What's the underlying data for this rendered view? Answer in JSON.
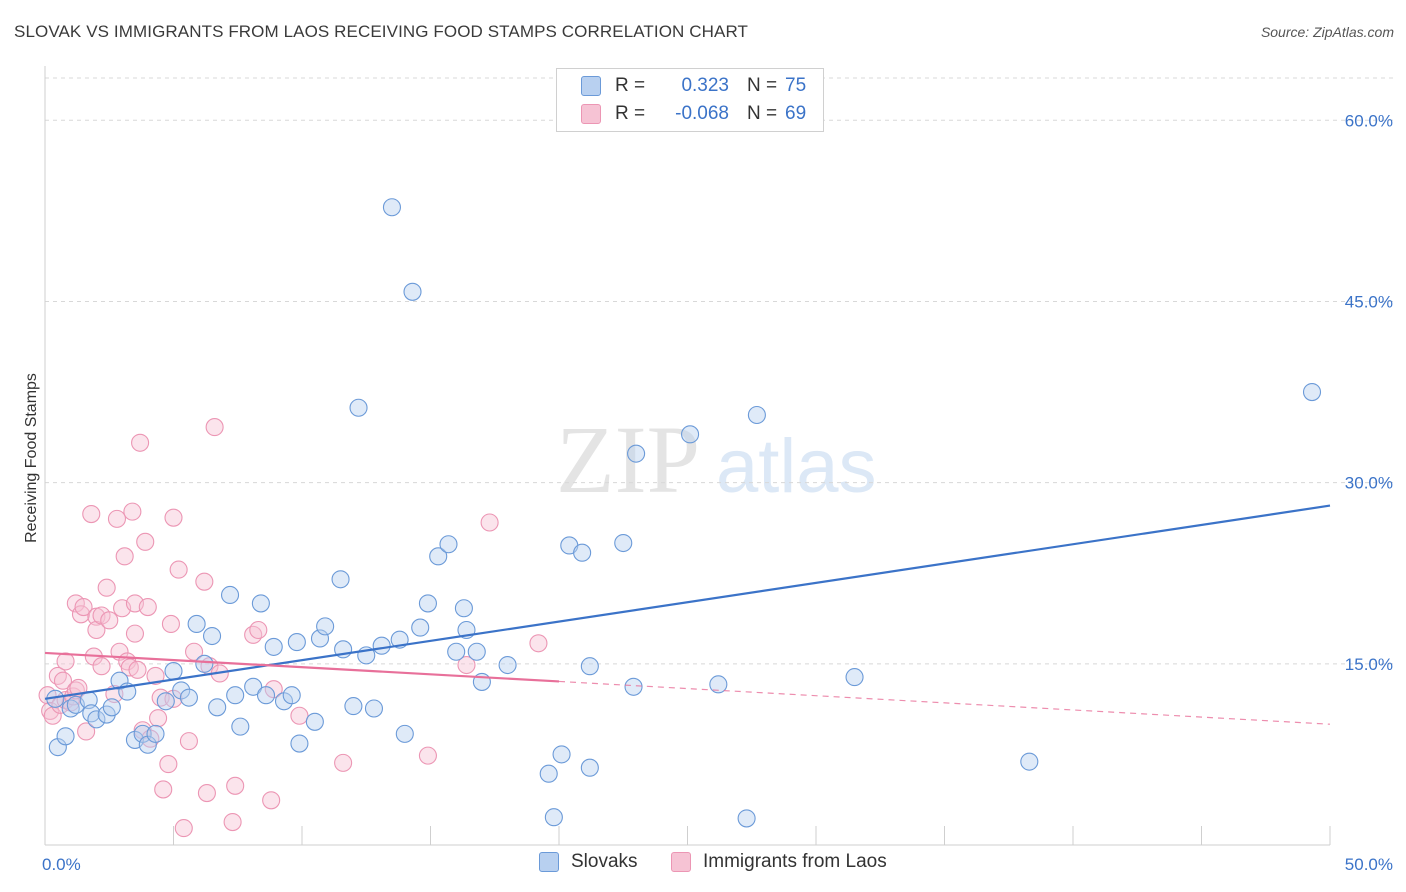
{
  "title": "SLOVAK VS IMMIGRANTS FROM LAOS RECEIVING FOOD STAMPS CORRELATION CHART",
  "source": "Source: ZipAtlas.com",
  "watermark": {
    "zip": "ZIP",
    "atlas": "atlas"
  },
  "colors": {
    "blue": "#3b73c8",
    "blue_fill": "#b8d0f0",
    "blue_stroke": "#6b9ad8",
    "pink": "#e8709a",
    "pink_fill": "#f6c3d4",
    "pink_stroke": "#ec96b4",
    "grid": "#d8d8d8"
  },
  "legend": {
    "rows": [
      {
        "r_label": "R =",
        "r_value": "0.323",
        "n_label": "N =",
        "n_value": "75"
      },
      {
        "r_label": "R =",
        "r_value": "-0.068",
        "n_label": "N =",
        "n_value": "69"
      }
    ]
  },
  "bottom_legend": {
    "series1": "Slovaks",
    "series2": "Immigrants from Laos"
  },
  "chart_data": {
    "type": "scatter",
    "title": "SLOVAK VS IMMIGRANTS FROM LAOS RECEIVING FOOD STAMPS CORRELATION CHART",
    "xlabel": "",
    "ylabel": "Receiving Food Stamps",
    "xlim": [
      0,
      50
    ],
    "ylim": [
      0,
      63.5
    ],
    "x_tick_labels": [
      "0.0%",
      "50.0%"
    ],
    "y_ticks": [
      {
        "value": 15,
        "label": "15.0%"
      },
      {
        "value": 30,
        "label": "30.0%"
      },
      {
        "value": 45,
        "label": "45.0%"
      },
      {
        "value": 60,
        "label": "60.0%"
      }
    ],
    "series": [
      {
        "name": "Slovaks",
        "color": "blue",
        "points": [
          [
            0.4,
            12.1
          ],
          [
            0.5,
            8.1
          ],
          [
            0.8,
            9.0
          ],
          [
            1.0,
            11.3
          ],
          [
            1.2,
            11.6
          ],
          [
            1.7,
            12.0
          ],
          [
            1.8,
            10.9
          ],
          [
            2.0,
            10.4
          ],
          [
            2.4,
            10.8
          ],
          [
            2.6,
            11.4
          ],
          [
            2.9,
            13.6
          ],
          [
            3.2,
            12.7
          ],
          [
            3.5,
            8.7
          ],
          [
            3.8,
            9.2
          ],
          [
            4.0,
            8.3
          ],
          [
            4.3,
            9.2
          ],
          [
            4.7,
            11.9
          ],
          [
            5.0,
            14.4
          ],
          [
            5.3,
            12.8
          ],
          [
            5.6,
            12.2
          ],
          [
            5.9,
            18.3
          ],
          [
            6.2,
            15.0
          ],
          [
            6.5,
            17.3
          ],
          [
            6.7,
            11.4
          ],
          [
            7.2,
            20.7
          ],
          [
            7.4,
            12.4
          ],
          [
            7.6,
            9.8
          ],
          [
            8.1,
            13.1
          ],
          [
            8.4,
            20.0
          ],
          [
            8.6,
            12.4
          ],
          [
            8.9,
            16.4
          ],
          [
            9.3,
            11.9
          ],
          [
            9.6,
            12.4
          ],
          [
            9.9,
            8.4
          ],
          [
            9.8,
            16.8
          ],
          [
            10.5,
            10.2
          ],
          [
            10.7,
            17.1
          ],
          [
            10.9,
            18.1
          ],
          [
            11.5,
            22.0
          ],
          [
            11.6,
            16.2
          ],
          [
            12.0,
            11.5
          ],
          [
            12.2,
            36.2
          ],
          [
            12.5,
            15.7
          ],
          [
            12.8,
            11.3
          ],
          [
            13.1,
            16.5
          ],
          [
            13.5,
            52.8
          ],
          [
            13.8,
            17.0
          ],
          [
            14.0,
            9.2
          ],
          [
            14.3,
            45.8
          ],
          [
            14.6,
            18.0
          ],
          [
            14.9,
            20.0
          ],
          [
            15.3,
            23.9
          ],
          [
            15.7,
            24.9
          ],
          [
            16.0,
            16.0
          ],
          [
            16.3,
            19.6
          ],
          [
            16.4,
            17.8
          ],
          [
            16.8,
            16.0
          ],
          [
            17.0,
            13.5
          ],
          [
            18.0,
            14.9
          ],
          [
            19.6,
            5.9
          ],
          [
            19.8,
            2.3
          ],
          [
            20.1,
            7.5
          ],
          [
            20.4,
            24.8
          ],
          [
            20.9,
            24.2
          ],
          [
            21.2,
            14.8
          ],
          [
            21.2,
            6.4
          ],
          [
            22.5,
            25.0
          ],
          [
            22.9,
            13.1
          ],
          [
            23.0,
            32.4
          ],
          [
            25.1,
            34.0
          ],
          [
            26.2,
            13.3
          ],
          [
            27.3,
            2.2
          ],
          [
            27.7,
            35.6
          ],
          [
            31.5,
            13.9
          ],
          [
            38.3,
            6.9
          ],
          [
            49.3,
            37.5
          ]
        ]
      },
      {
        "name": "Immigrants from Laos",
        "color": "pink",
        "points": [
          [
            0.1,
            12.4
          ],
          [
            0.2,
            11.1
          ],
          [
            0.3,
            10.7
          ],
          [
            0.5,
            14.0
          ],
          [
            0.6,
            11.6
          ],
          [
            0.7,
            13.6
          ],
          [
            0.8,
            12.0
          ],
          [
            0.8,
            15.2
          ],
          [
            1.0,
            11.8
          ],
          [
            1.1,
            12.3
          ],
          [
            1.2,
            12.8
          ],
          [
            1.2,
            20.0
          ],
          [
            1.3,
            13.0
          ],
          [
            1.4,
            19.1
          ],
          [
            1.5,
            19.7
          ],
          [
            1.6,
            9.4
          ],
          [
            1.8,
            27.4
          ],
          [
            1.9,
            15.6
          ],
          [
            2.0,
            18.9
          ],
          [
            2.0,
            17.8
          ],
          [
            2.2,
            19.0
          ],
          [
            2.2,
            14.8
          ],
          [
            2.4,
            21.3
          ],
          [
            2.5,
            18.6
          ],
          [
            2.7,
            12.5
          ],
          [
            2.8,
            27.0
          ],
          [
            2.9,
            16.0
          ],
          [
            3.0,
            19.6
          ],
          [
            3.1,
            23.9
          ],
          [
            3.2,
            15.2
          ],
          [
            3.3,
            14.7
          ],
          [
            3.4,
            27.6
          ],
          [
            3.5,
            17.5
          ],
          [
            3.5,
            20.0
          ],
          [
            3.6,
            14.5
          ],
          [
            3.7,
            33.3
          ],
          [
            3.8,
            9.5
          ],
          [
            3.9,
            25.1
          ],
          [
            4.0,
            19.7
          ],
          [
            4.1,
            8.8
          ],
          [
            4.3,
            14.0
          ],
          [
            4.4,
            10.5
          ],
          [
            4.5,
            12.2
          ],
          [
            4.6,
            4.6
          ],
          [
            4.8,
            6.7
          ],
          [
            4.9,
            18.3
          ],
          [
            5.0,
            27.1
          ],
          [
            5.0,
            12.1
          ],
          [
            5.2,
            22.8
          ],
          [
            5.4,
            1.4
          ],
          [
            5.6,
            8.6
          ],
          [
            5.8,
            16.0
          ],
          [
            6.2,
            21.8
          ],
          [
            6.3,
            4.3
          ],
          [
            6.4,
            14.8
          ],
          [
            6.6,
            34.6
          ],
          [
            6.8,
            14.2
          ],
          [
            7.3,
            1.9
          ],
          [
            7.4,
            4.9
          ],
          [
            8.1,
            17.4
          ],
          [
            8.3,
            17.8
          ],
          [
            8.8,
            3.7
          ],
          [
            8.9,
            12.9
          ],
          [
            9.9,
            10.7
          ],
          [
            11.6,
            6.8
          ],
          [
            14.9,
            7.4
          ],
          [
            16.4,
            14.9
          ],
          [
            17.3,
            26.7
          ],
          [
            19.2,
            16.7
          ]
        ]
      }
    ],
    "trendlines": [
      {
        "series": "Slovaks",
        "x": [
          0,
          50
        ],
        "y": [
          12.1,
          28.1
        ],
        "solid_to": 50
      },
      {
        "series": "Immigrants from Laos",
        "x": [
          0,
          50
        ],
        "y": [
          15.9,
          10.0
        ],
        "solid_to": 20
      }
    ]
  }
}
